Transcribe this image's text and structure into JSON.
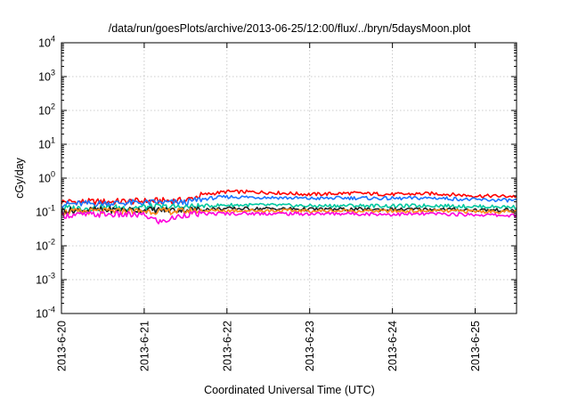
{
  "chart_data": {
    "type": "line",
    "title": "/data/run/goesPlots/archive/2013-06-25/12:00/flux/../bryn/5daysMoon.plot",
    "xlabel": "Coordinated Universal Time (UTC)",
    "ylabel": "cGy/day",
    "yscale": "log",
    "ylim": [
      0.0001,
      10000
    ],
    "ytick_base": "10",
    "yticks_exp": [
      "-4",
      "-3",
      "-2",
      "-1",
      "0",
      "1",
      "2",
      "3",
      "4"
    ],
    "xlim_days": [
      0,
      5.5
    ],
    "xticks": [
      {
        "label": "2013-6-20",
        "day": 0
      },
      {
        "label": "2013-6-21",
        "day": 1
      },
      {
        "label": "2013-6-22",
        "day": 2
      },
      {
        "label": "2013-6-23",
        "day": 3
      },
      {
        "label": "2013-6-24",
        "day": 4
      },
      {
        "label": "2013-6-25",
        "day": 5
      }
    ],
    "grid": true,
    "series": [
      {
        "color": "#ff0000",
        "x": [
          0,
          0.5,
          1.0,
          1.5,
          1.7,
          2.0,
          2.5,
          3.0,
          3.5,
          4.0,
          4.5,
          5.0,
          5.5
        ],
        "values": [
          0.2,
          0.2,
          0.21,
          0.22,
          0.32,
          0.4,
          0.38,
          0.33,
          0.36,
          0.33,
          0.35,
          0.3,
          0.29
        ]
      },
      {
        "color": "#1a75ff",
        "x": [
          0,
          0.5,
          1.0,
          1.5,
          1.7,
          2.0,
          2.5,
          3.0,
          3.5,
          4.0,
          4.5,
          5.0,
          5.5
        ],
        "values": [
          0.17,
          0.18,
          0.19,
          0.19,
          0.24,
          0.28,
          0.27,
          0.25,
          0.26,
          0.25,
          0.26,
          0.23,
          0.22
        ]
      },
      {
        "color": "#00c8a0",
        "x": [
          0,
          0.5,
          1.0,
          1.5,
          1.7,
          2.0,
          2.5,
          3.0,
          3.5,
          4.0,
          4.5,
          5.0,
          5.5
        ],
        "values": [
          0.13,
          0.13,
          0.14,
          0.14,
          0.15,
          0.16,
          0.16,
          0.15,
          0.155,
          0.15,
          0.155,
          0.145,
          0.14
        ]
      },
      {
        "color": "#222222",
        "x": [
          0,
          0.5,
          1.0,
          1.5,
          1.7,
          2.0,
          2.5,
          3.0,
          3.5,
          4.0,
          4.5,
          5.0,
          5.5
        ],
        "values": [
          0.11,
          0.115,
          0.115,
          0.115,
          0.12,
          0.125,
          0.125,
          0.12,
          0.12,
          0.118,
          0.12,
          0.115,
          0.112
        ]
      },
      {
        "color": "#ff8c1a",
        "x": [
          0,
          0.5,
          1.0,
          1.5,
          1.7,
          2.0,
          2.5,
          3.0,
          3.5,
          4.0,
          4.5,
          5.0,
          5.5
        ],
        "values": [
          0.1,
          0.105,
          0.105,
          0.105,
          0.108,
          0.11,
          0.11,
          0.107,
          0.108,
          0.106,
          0.107,
          0.104,
          0.101
        ]
      },
      {
        "color": "#ff00dc",
        "x": [
          0,
          0.5,
          1.0,
          1.2,
          1.5,
          1.7,
          2.0,
          2.5,
          3.0,
          3.5,
          4.0,
          4.5,
          5.0,
          5.5
        ],
        "values": [
          0.08,
          0.085,
          0.08,
          0.05,
          0.085,
          0.088,
          0.09,
          0.09,
          0.088,
          0.09,
          0.085,
          0.088,
          0.083,
          0.078
        ]
      }
    ]
  }
}
